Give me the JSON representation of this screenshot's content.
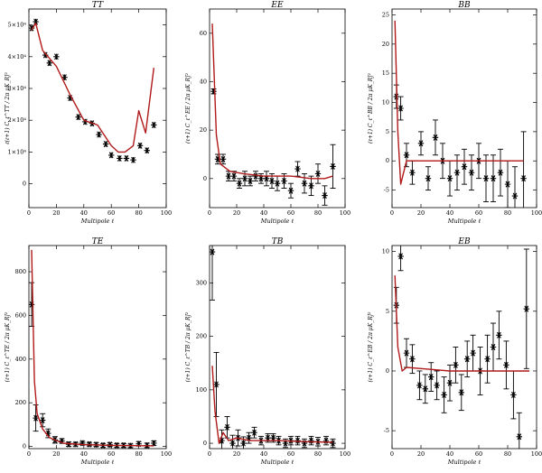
{
  "figure": {
    "description_free": true
  },
  "chart_data": [
    {
      "id": "TT",
      "type": "scatter",
      "title": "TT",
      "xlabel": "Multipole ℓ",
      "ylabel": "ℓ(ℓ+1) C_ℓ^TT / 2π  μK_RJ²",
      "xlim": [
        0,
        100
      ],
      "ylim": [
        -7500,
        55000
      ],
      "xticks": [
        0,
        20,
        40,
        60,
        80,
        100
      ],
      "xtick_labels": [
        "0",
        "20",
        "40",
        "60",
        "80",
        "100"
      ],
      "yticks": [
        0,
        10000,
        20000,
        30000,
        40000,
        50000
      ],
      "ytick_labels": [
        "0",
        "1×10⁴",
        "2×10⁴",
        "3×10⁴",
        "4×10⁴",
        "5×10⁴"
      ],
      "points": [
        {
          "x": 2,
          "y": 49000
        },
        {
          "x": 5,
          "y": 51000
        },
        {
          "x": 12,
          "y": 40500
        },
        {
          "x": 15,
          "y": 38000
        },
        {
          "x": 20,
          "y": 40000
        },
        {
          "x": 26,
          "y": 33500
        },
        {
          "x": 30,
          "y": 27000
        },
        {
          "x": 36,
          "y": 21000
        },
        {
          "x": 41,
          "y": 19500
        },
        {
          "x": 46,
          "y": 19000
        },
        {
          "x": 51,
          "y": 15500
        },
        {
          "x": 56,
          "y": 12500
        },
        {
          "x": 60,
          "y": 9000
        },
        {
          "x": 66,
          "y": 8000
        },
        {
          "x": 71,
          "y": 8000
        },
        {
          "x": 76,
          "y": 7500
        },
        {
          "x": 81,
          "y": 12000
        },
        {
          "x": 86,
          "y": 10500
        },
        {
          "x": 91,
          "y": 18500
        }
      ],
      "model": [
        {
          "x": 2,
          "y": 48500
        },
        {
          "x": 5,
          "y": 50500
        },
        {
          "x": 10,
          "y": 42000
        },
        {
          "x": 20,
          "y": 37000
        },
        {
          "x": 30,
          "y": 28000
        },
        {
          "x": 40,
          "y": 20000
        },
        {
          "x": 50,
          "y": 18500
        },
        {
          "x": 60,
          "y": 12000
        },
        {
          "x": 65,
          "y": 10000
        },
        {
          "x": 70,
          "y": 10000
        },
        {
          "x": 76,
          "y": 12000
        },
        {
          "x": 80,
          "y": 23000
        },
        {
          "x": 85,
          "y": 16000
        },
        {
          "x": 91,
          "y": 36500
        }
      ]
    },
    {
      "id": "EE",
      "type": "scatter",
      "title": "EE",
      "xlabel": "Multipole ℓ",
      "ylabel": "(ℓ+1) C_ℓ^EE / 2π  μK_RJ²",
      "xlim": [
        0,
        100
      ],
      "ylim": [
        -12,
        70
      ],
      "xticks": [
        0,
        20,
        40,
        60,
        80,
        100
      ],
      "xtick_labels": [
        "0",
        "20",
        "40",
        "60",
        "80",
        "100"
      ],
      "yticks": [
        0,
        20,
        40,
        60
      ],
      "ytick_labels": [
        "0",
        "20",
        "40",
        "60"
      ],
      "points": [
        {
          "x": 3,
          "y": 36,
          "err": 1
        },
        {
          "x": 6,
          "y": 8,
          "err": 2
        },
        {
          "x": 10,
          "y": 8,
          "err": 2
        },
        {
          "x": 14,
          "y": 1,
          "err": 2
        },
        {
          "x": 18,
          "y": 1,
          "err": 2
        },
        {
          "x": 22,
          "y": -2,
          "err": 2
        },
        {
          "x": 26,
          "y": 0,
          "err": 3
        },
        {
          "x": 30,
          "y": -1,
          "err": 2
        },
        {
          "x": 34,
          "y": 1,
          "err": 2
        },
        {
          "x": 38,
          "y": 0,
          "err": 2
        },
        {
          "x": 42,
          "y": 0,
          "err": 3
        },
        {
          "x": 46,
          "y": -1,
          "err": 3
        },
        {
          "x": 50,
          "y": -2,
          "err": 3
        },
        {
          "x": 55,
          "y": -1,
          "err": 3
        },
        {
          "x": 60,
          "y": -5,
          "err": 3
        },
        {
          "x": 65,
          "y": 4,
          "err": 3
        },
        {
          "x": 70,
          "y": -2,
          "err": 4
        },
        {
          "x": 75,
          "y": -3,
          "err": 4
        },
        {
          "x": 80,
          "y": 2,
          "err": 4
        },
        {
          "x": 85,
          "y": -7,
          "err": 4
        },
        {
          "x": 91,
          "y": 5,
          "err": 9
        }
      ],
      "model": [
        {
          "x": 2,
          "y": 64
        },
        {
          "x": 5,
          "y": 18
        },
        {
          "x": 8,
          "y": 6
        },
        {
          "x": 15,
          "y": 3
        },
        {
          "x": 25,
          "y": 2
        },
        {
          "x": 40,
          "y": 1
        },
        {
          "x": 60,
          "y": 1
        },
        {
          "x": 75,
          "y": 0
        },
        {
          "x": 85,
          "y": 0
        },
        {
          "x": 91,
          "y": 1
        }
      ]
    },
    {
      "id": "BB",
      "type": "scatter",
      "title": "BB",
      "xlabel": "Multipole ℓ",
      "ylabel": "(ℓ+1) C_ℓ^BB / 2π  μK_RJ²",
      "xlim": [
        0,
        100
      ],
      "ylim": [
        -8,
        26
      ],
      "xticks": [
        0,
        20,
        40,
        60,
        80,
        100
      ],
      "xtick_labels": [
        "0",
        "20",
        "40",
        "60",
        "80",
        "100"
      ],
      "yticks": [
        -5,
        0,
        5,
        10,
        15,
        20,
        25
      ],
      "ytick_labels": [
        "-5",
        "0",
        "5",
        "10",
        "15",
        "20",
        "25"
      ],
      "points": [
        {
          "x": 3,
          "y": 11,
          "err": 2
        },
        {
          "x": 6,
          "y": 9,
          "err": 2
        },
        {
          "x": 10,
          "y": 1,
          "err": 2
        },
        {
          "x": 14,
          "y": -2,
          "err": 2
        },
        {
          "x": 20,
          "y": 3,
          "err": 2
        },
        {
          "x": 25,
          "y": -3,
          "err": 2
        },
        {
          "x": 30,
          "y": 4,
          "err": 3
        },
        {
          "x": 35,
          "y": 0,
          "err": 3
        },
        {
          "x": 40,
          "y": -3,
          "err": 3
        },
        {
          "x": 45,
          "y": -2,
          "err": 3
        },
        {
          "x": 50,
          "y": -1,
          "err": 3
        },
        {
          "x": 55,
          "y": -2,
          "err": 3
        },
        {
          "x": 60,
          "y": 0,
          "err": 3
        },
        {
          "x": 65,
          "y": -3,
          "err": 4
        },
        {
          "x": 70,
          "y": -3,
          "err": 4
        },
        {
          "x": 75,
          "y": -2,
          "err": 4
        },
        {
          "x": 80,
          "y": -4,
          "err": 4
        },
        {
          "x": 85,
          "y": -6,
          "err": 5
        },
        {
          "x": 91,
          "y": -3,
          "err": 8
        }
      ],
      "model": [
        {
          "x": 2,
          "y": 24
        },
        {
          "x": 4,
          "y": 5
        },
        {
          "x": 6,
          "y": -4
        },
        {
          "x": 10,
          "y": 0
        },
        {
          "x": 20,
          "y": 0
        },
        {
          "x": 40,
          "y": 0
        },
        {
          "x": 60,
          "y": 0
        },
        {
          "x": 80,
          "y": 0
        },
        {
          "x": 91,
          "y": 0
        }
      ]
    },
    {
      "id": "TE",
      "type": "scatter",
      "title": "TE",
      "xlabel": "Multipole ℓ",
      "ylabel": "(ℓ+1) C_ℓ^TE / 2π  μK_RJ²",
      "xlim": [
        0,
        100
      ],
      "ylim": [
        -10,
        920
      ],
      "xticks": [
        0,
        20,
        40,
        60,
        80,
        100
      ],
      "xtick_labels": [
        "0",
        "20",
        "40",
        "60",
        "80",
        "100"
      ],
      "yticks": [
        0,
        200,
        400,
        600,
        800
      ],
      "ytick_labels": [
        "0",
        "200",
        "400",
        "600",
        "800"
      ],
      "points": [
        {
          "x": 2,
          "y": 650,
          "err": 100
        },
        {
          "x": 5,
          "y": 130,
          "err": 60
        },
        {
          "x": 10,
          "y": 120,
          "err": 30
        },
        {
          "x": 14,
          "y": 60,
          "err": 20
        },
        {
          "x": 19,
          "y": 30,
          "err": 15
        },
        {
          "x": 24,
          "y": 25,
          "err": 10
        },
        {
          "x": 29,
          "y": 10,
          "err": 10
        },
        {
          "x": 34,
          "y": 10,
          "err": 8
        },
        {
          "x": 39,
          "y": 15,
          "err": 8
        },
        {
          "x": 44,
          "y": 10,
          "err": 8
        },
        {
          "x": 49,
          "y": 8,
          "err": 8
        },
        {
          "x": 54,
          "y": 5,
          "err": 8
        },
        {
          "x": 59,
          "y": 8,
          "err": 8
        },
        {
          "x": 64,
          "y": 5,
          "err": 8
        },
        {
          "x": 69,
          "y": 5,
          "err": 8
        },
        {
          "x": 74,
          "y": 3,
          "err": 8
        },
        {
          "x": 80,
          "y": 12,
          "err": 10
        },
        {
          "x": 86,
          "y": 5,
          "err": 10
        },
        {
          "x": 91,
          "y": 15,
          "err": 10
        }
      ],
      "model": [
        {
          "x": 2,
          "y": 900
        },
        {
          "x": 4,
          "y": 300
        },
        {
          "x": 6,
          "y": 150
        },
        {
          "x": 10,
          "y": 80
        },
        {
          "x": 15,
          "y": 40
        },
        {
          "x": 25,
          "y": 15
        },
        {
          "x": 40,
          "y": 8
        },
        {
          "x": 60,
          "y": 5
        },
        {
          "x": 91,
          "y": 3
        }
      ]
    },
    {
      "id": "TB",
      "type": "scatter",
      "title": "TB",
      "xlabel": "Multipole ℓ",
      "ylabel": "(ℓ+1) C_ℓ^TB / 2π  μK_RJ²",
      "xlim": [
        0,
        100
      ],
      "ylim": [
        -10,
        370
      ],
      "xticks": [
        0,
        20,
        40,
        60,
        80,
        100
      ],
      "xtick_labels": [
        "0",
        "20",
        "40",
        "60",
        "80",
        "100"
      ],
      "yticks": [
        0,
        100,
        200,
        300
      ],
      "ytick_labels": [
        "0",
        "100",
        "200",
        "300"
      ],
      "points": [
        {
          "x": 2,
          "y": 358,
          "err": 90
        },
        {
          "x": 5,
          "y": 110,
          "err": 60
        },
        {
          "x": 9,
          "y": 5,
          "err": 20
        },
        {
          "x": 13,
          "y": 30,
          "err": 20
        },
        {
          "x": 17,
          "y": 0,
          "err": 15
        },
        {
          "x": 21,
          "y": 10,
          "err": 15
        },
        {
          "x": 25,
          "y": 0,
          "err": 12
        },
        {
          "x": 29,
          "y": 10,
          "err": 10
        },
        {
          "x": 33,
          "y": 20,
          "err": 10
        },
        {
          "x": 38,
          "y": 5,
          "err": 8
        },
        {
          "x": 43,
          "y": 10,
          "err": 8
        },
        {
          "x": 47,
          "y": 10,
          "err": 8
        },
        {
          "x": 51,
          "y": 5,
          "err": 8
        },
        {
          "x": 56,
          "y": 0,
          "err": 8
        },
        {
          "x": 60,
          "y": 5,
          "err": 8
        },
        {
          "x": 65,
          "y": 5,
          "err": 8
        },
        {
          "x": 70,
          "y": 0,
          "err": 8
        },
        {
          "x": 75,
          "y": 5,
          "err": 8
        },
        {
          "x": 80,
          "y": 3,
          "err": 8
        },
        {
          "x": 86,
          "y": 5,
          "err": 8
        },
        {
          "x": 91,
          "y": 0,
          "err": 8
        }
      ],
      "model": [
        {
          "x": 2,
          "y": 145
        },
        {
          "x": 4,
          "y": 60
        },
        {
          "x": 7,
          "y": 0
        },
        {
          "x": 10,
          "y": 20
        },
        {
          "x": 14,
          "y": 5
        },
        {
          "x": 20,
          "y": 10
        },
        {
          "x": 30,
          "y": 5
        },
        {
          "x": 50,
          "y": 5
        },
        {
          "x": 70,
          "y": 3
        },
        {
          "x": 91,
          "y": 2
        }
      ]
    },
    {
      "id": "EB",
      "type": "scatter",
      "title": "EB",
      "xlabel": "Multipole ℓ",
      "ylabel": "(ℓ+1) C_ℓ^EB / 2π  μK_RJ²",
      "xlim": [
        0,
        100
      ],
      "ylim": [
        -6.5,
        10.5
      ],
      "xticks": [
        0,
        20,
        40,
        60,
        80,
        100
      ],
      "xtick_labels": [
        "0",
        "20",
        "40",
        "60",
        "80",
        "100"
      ],
      "yticks": [
        -5,
        0,
        5,
        10
      ],
      "ytick_labels": [
        "-5",
        "0",
        "5",
        "10"
      ],
      "points": [
        {
          "x": 3,
          "y": 5.5,
          "err": 1.5
        },
        {
          "x": 6,
          "y": 9.6,
          "err": 1.2
        },
        {
          "x": 10,
          "y": 1.5,
          "err": 1.2
        },
        {
          "x": 14,
          "y": 1,
          "err": 1.2
        },
        {
          "x": 19,
          "y": -1.2,
          "err": 1.2
        },
        {
          "x": 23,
          "y": -1.5,
          "err": 1.2
        },
        {
          "x": 27,
          "y": -0.5,
          "err": 1.2
        },
        {
          "x": 31,
          "y": -1.2,
          "err": 1.2
        },
        {
          "x": 36,
          "y": -2,
          "err": 1.5
        },
        {
          "x": 40,
          "y": -1,
          "err": 1.5
        },
        {
          "x": 44,
          "y": 0.5,
          "err": 1.5
        },
        {
          "x": 48,
          "y": -1.8,
          "err": 1.5
        },
        {
          "x": 52,
          "y": 1,
          "err": 1.5
        },
        {
          "x": 56,
          "y": 1.5,
          "err": 1.5
        },
        {
          "x": 61,
          "y": 0,
          "err": 2
        },
        {
          "x": 66,
          "y": 1,
          "err": 2
        },
        {
          "x": 70,
          "y": 2,
          "err": 2
        },
        {
          "x": 74,
          "y": 3,
          "err": 2
        },
        {
          "x": 79,
          "y": 0.5,
          "err": 2
        },
        {
          "x": 84,
          "y": -2,
          "err": 2
        },
        {
          "x": 88,
          "y": -5.5,
          "err": 2
        },
        {
          "x": 93,
          "y": 5.2,
          "err": 5
        }
      ],
      "model": [
        {
          "x": 2,
          "y": 8
        },
        {
          "x": 4,
          "y": 2
        },
        {
          "x": 7,
          "y": 0
        },
        {
          "x": 10,
          "y": 0.3
        },
        {
          "x": 20,
          "y": 0.2
        },
        {
          "x": 40,
          "y": 0
        },
        {
          "x": 60,
          "y": 0
        },
        {
          "x": 80,
          "y": 0
        },
        {
          "x": 95,
          "y": 0
        }
      ]
    }
  ]
}
